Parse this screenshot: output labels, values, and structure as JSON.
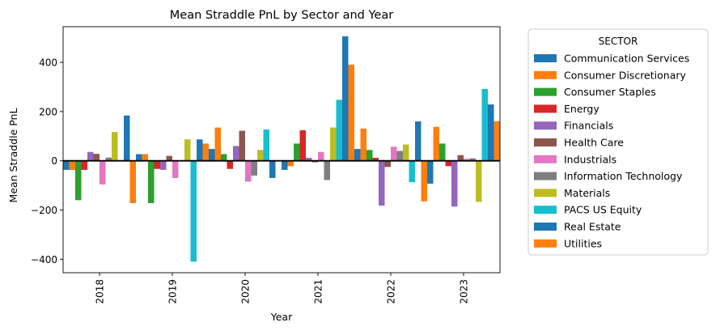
{
  "chart_data": {
    "type": "bar",
    "title": "Mean Straddle PnL by Sector and Year",
    "xlabel": "Year",
    "ylabel": "Mean Straddle PnL",
    "ylim": [
      -455,
      545
    ],
    "yticks": [
      -400,
      -200,
      0,
      200,
      400
    ],
    "grid": false,
    "legend_position": "outside-right",
    "legend_title": "SECTOR",
    "categories": [
      "2018",
      "2019",
      "2020",
      "2021",
      "2022",
      "2023"
    ],
    "series": [
      {
        "name": "Communication Services",
        "color": "#1f77b4",
        "values": [
          -37,
          27,
          48,
          -37,
          48,
          -93
        ]
      },
      {
        "name": "Consumer Discretionary",
        "color": "#ff7f0e",
        "values": [
          -37,
          27,
          135,
          -22,
          131,
          138
        ]
      },
      {
        "name": "Consumer Staples",
        "color": "#2ca02c",
        "values": [
          -160,
          -172,
          27,
          70,
          44,
          70
        ]
      },
      {
        "name": "Energy",
        "color": "#d62728",
        "values": [
          -37,
          -33,
          -33,
          124,
          12,
          -22
        ]
      },
      {
        "name": "Financials",
        "color": "#9467bd",
        "values": [
          36,
          -37,
          60,
          12,
          -182,
          -186
        ]
      },
      {
        "name": "Health Care",
        "color": "#8c564b",
        "values": [
          28,
          20,
          122,
          -6,
          -25,
          23
        ]
      },
      {
        "name": "Industrials",
        "color": "#e377c2",
        "values": [
          -96,
          -70,
          -85,
          36,
          57,
          8
        ]
      },
      {
        "name": "Information Technology",
        "color": "#7f7f7f",
        "values": [
          13,
          0,
          -60,
          -78,
          40,
          10
        ]
      },
      {
        "name": "Materials",
        "color": "#bcbd22",
        "values": [
          117,
          87,
          44,
          135,
          66,
          -167
        ]
      },
      {
        "name": "PACS US Equity",
        "color": "#17becf",
        "values": [
          0,
          -410,
          127,
          248,
          -87,
          292
        ]
      },
      {
        "name": "Real Estate",
        "color": "#1f77b4",
        "values": [
          184,
          87,
          -70,
          506,
          160,
          229
        ]
      },
      {
        "name": "Utilities",
        "color": "#ff7f0e",
        "values": [
          -172,
          70,
          0,
          391,
          -165,
          161
        ]
      }
    ]
  }
}
